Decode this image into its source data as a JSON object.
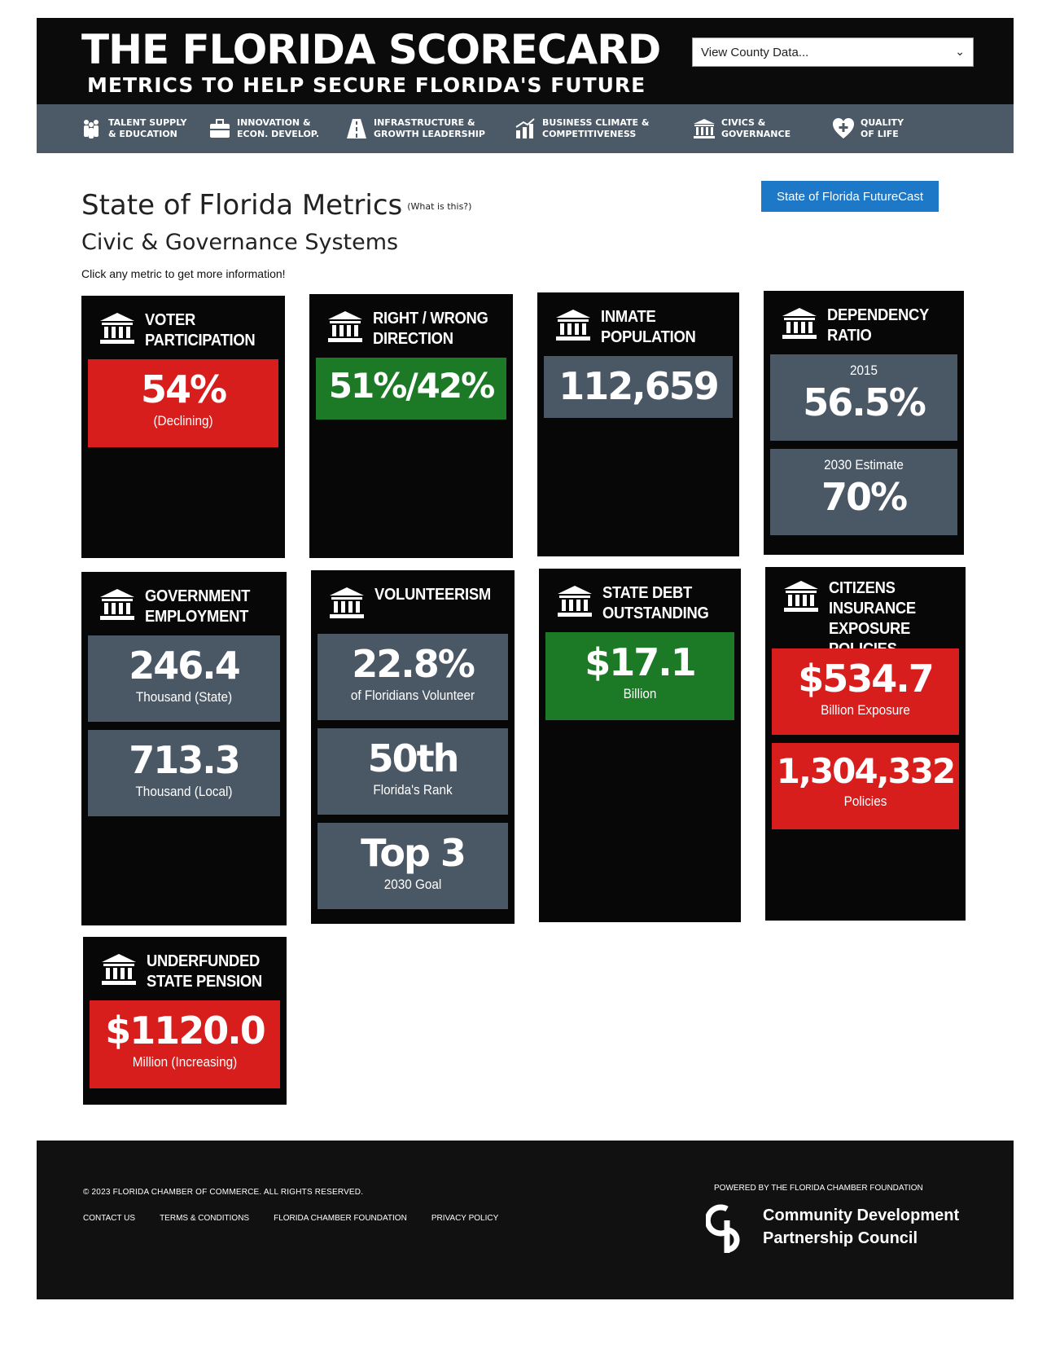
{
  "header": {
    "title": "THE FLORIDA SCORECARD",
    "subtitle": "METRICS TO HELP SECURE FLORIDA'S FUTURE",
    "county_select": {
      "value": "View County Data..."
    }
  },
  "nav": {
    "items": [
      {
        "label": "TALENT SUPPLY\n& EDUCATION",
        "icon": "people-icon"
      },
      {
        "label": "INNOVATION &\nECON. DEVELOP.",
        "icon": "briefcase-icon"
      },
      {
        "label": "INFRASTRUCTURE &\nGROWTH LEADERSHIP",
        "icon": "road-icon"
      },
      {
        "label": "BUSINESS CLIMATE &\nCOMPETITIVENESS",
        "icon": "growth-chart-icon"
      },
      {
        "label": "CIVICS &\nGOVERNANCE",
        "icon": "government-building-icon"
      },
      {
        "label": "QUALITY\nOF LIFE",
        "icon": "heart-plus-icon"
      }
    ]
  },
  "page": {
    "title": "State of Florida Metrics",
    "what_link": "(What is this?)",
    "subtitle": "Civic & Governance Systems",
    "hint": "Click any metric to get more information!",
    "futurecast_button": "State of Florida FutureCast"
  },
  "cards": {
    "voter": {
      "title": "VOTER\nPARTICIPATION",
      "value": "54%",
      "sub": "(Declining)",
      "status_color": "#d81d1d"
    },
    "direction": {
      "title": "RIGHT / WRONG\nDIRECTION",
      "value": "51%/42%",
      "status_color": "#1c7a26"
    },
    "inmate": {
      "title": "INMATE\nPOPULATION",
      "value": "112,659"
    },
    "dependency": {
      "title": "DEPENDENCY\nRATIO",
      "m1_top": "2015",
      "m1_value": "56.5%",
      "m2_top": "2030 Estimate",
      "m2_value": "70%"
    },
    "govemp": {
      "title": "GOVERNMENT\nEMPLOYMENT",
      "m1_value": "246.4",
      "m1_sub": "Thousand (State)",
      "m2_value": "713.3",
      "m2_sub": "Thousand (Local)"
    },
    "volunteer": {
      "title": "VOLUNTEERISM",
      "m1_value": "22.8%",
      "m1_sub": "of Floridians Volunteer",
      "m2_value": "50th",
      "m2_sub": "Florida's Rank",
      "m3_value": "Top 3",
      "m3_sub": "2030 Goal"
    },
    "debt": {
      "title": "STATE DEBT\nOUTSTANDING",
      "value": "$17.1",
      "sub": "Billion"
    },
    "citizens": {
      "title": "CITIZENS\nINSURANCE\nEXPOSURE POLICIES",
      "m1_value": "$534.7",
      "m1_sub": "Billion Exposure",
      "m2_value": "1,304,332",
      "m2_sub": "Policies"
    },
    "pension": {
      "title": "UNDERFUNDED\nSTATE PENSION",
      "value": "$1120.0",
      "sub": "Million (Increasing)"
    }
  },
  "footer": {
    "copyright": "© 2023 FLORIDA CHAMBER OF COMMERCE. ALL RIGHTS RESERVED.",
    "links": [
      "CONTACT US",
      "TERMS & CONDITIONS",
      "FLORIDA CHAMBER FOUNDATION",
      "PRIVACY POLICY"
    ],
    "powered_by": "POWERED BY THE FLORIDA CHAMBER FOUNDATION",
    "partner_name": "Community Development\nPartnership Council"
  }
}
